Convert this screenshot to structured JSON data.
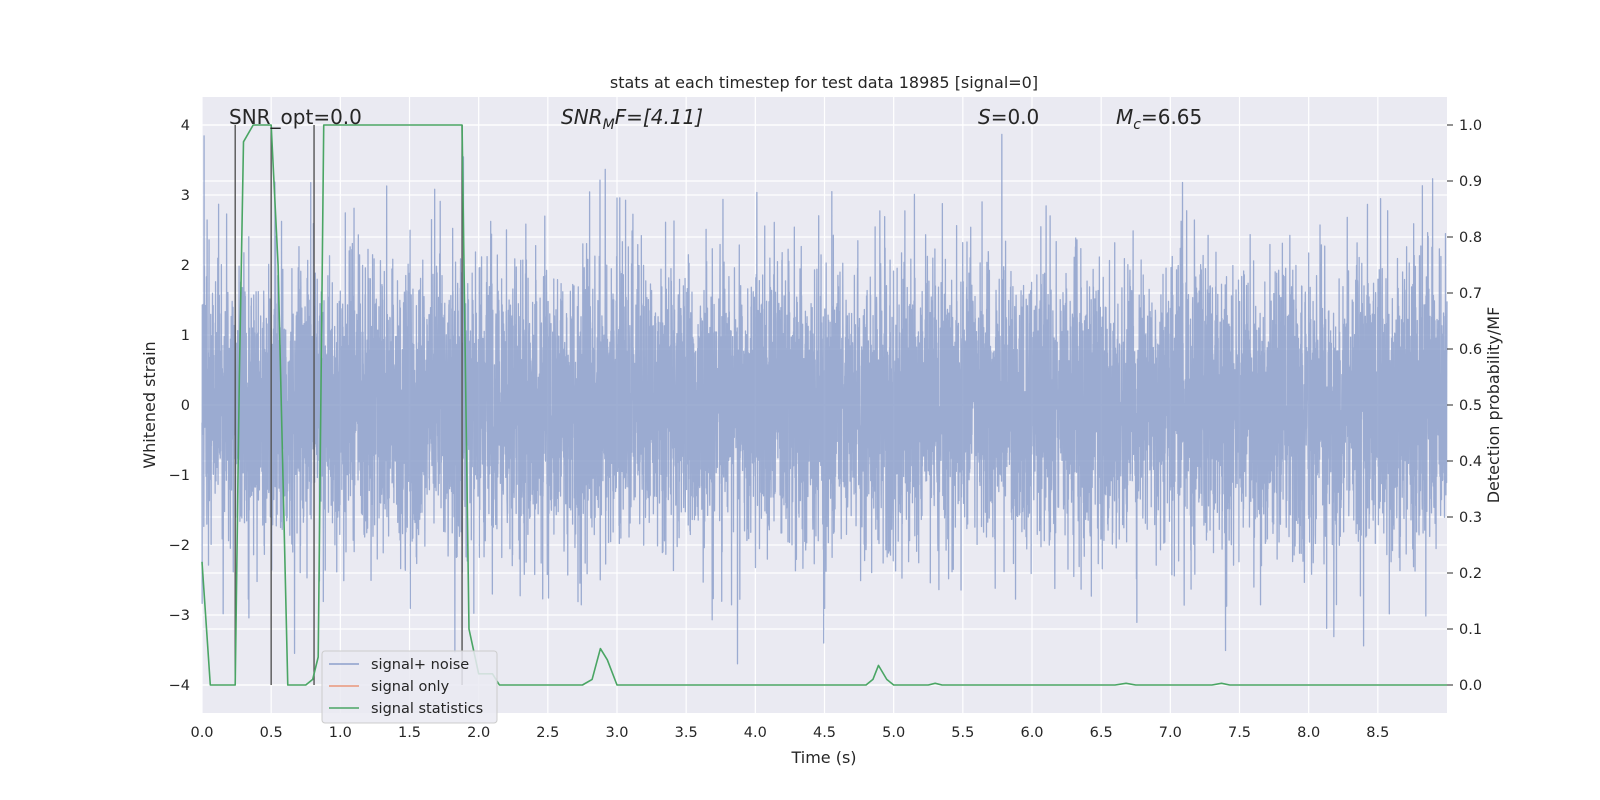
{
  "chart_data": {
    "type": "line",
    "title": "stats at each timestep for test data 18985 [signal=0]",
    "xlabel": "Time (s)",
    "ylabel": "Whitened strain",
    "y2label": "Detection probability/MF",
    "xlim": [
      0.0,
      9.0
    ],
    "ylim": [
      -4.4,
      4.4
    ],
    "y2lim": [
      -0.05,
      1.05
    ],
    "grid": true,
    "xticks": [
      "0.0",
      "0.5",
      "1.0",
      "1.5",
      "2.0",
      "2.5",
      "3.0",
      "3.5",
      "4.0",
      "4.5",
      "5.0",
      "5.5",
      "6.0",
      "6.5",
      "7.0",
      "7.5",
      "8.0",
      "8.5"
    ],
    "yticks": [
      "4",
      "3",
      "2",
      "1",
      "0",
      "−1",
      "−2",
      "−3",
      "−4"
    ],
    "y2ticks": [
      "1.0",
      "0.9",
      "0.8",
      "0.7",
      "0.6",
      "0.5",
      "0.4",
      "0.3",
      "0.2",
      "0.1",
      "0.0"
    ],
    "annotations": {
      "snr_opt": "SNR_opt=0.0",
      "snr_mf_label": "SNR",
      "snr_mf_sub": "M",
      "snr_mf_tail": "F=[4.11]",
      "s_label": "S",
      "s_value": "=0.0",
      "mc_label": "M",
      "mc_sub": "c",
      "mc_value": "=6.65"
    },
    "legend": {
      "location": "lower-left",
      "entries": [
        {
          "label": "signal+ noise",
          "color": "#8da0cb"
        },
        {
          "label": "signal only",
          "color": "#e9967a"
        },
        {
          "label": "signal statistics",
          "color": "#4aa564"
        }
      ]
    },
    "series": [
      {
        "name": "signal+ noise",
        "axis": "left",
        "style": "dense-noise",
        "sample_rate_hz": 1000,
        "sigma": 1.0,
        "color": "#8da0cb"
      },
      {
        "name": "signal only",
        "axis": "left",
        "values": [],
        "color": "#e9967a"
      },
      {
        "name": "signal statistics",
        "axis": "right",
        "color": "#4aa564",
        "points": [
          [
            0.0,
            0.22
          ],
          [
            0.06,
            0.0
          ],
          [
            0.24,
            0.0
          ],
          [
            0.27,
            0.55
          ],
          [
            0.3,
            0.97
          ],
          [
            0.37,
            1.0
          ],
          [
            0.5,
            1.0
          ],
          [
            0.55,
            0.75
          ],
          [
            0.62,
            0.0
          ],
          [
            0.75,
            0.0
          ],
          [
            0.8,
            0.01
          ],
          [
            0.84,
            0.05
          ],
          [
            0.88,
            1.0
          ],
          [
            1.88,
            1.0
          ],
          [
            1.93,
            0.1
          ],
          [
            2.0,
            0.02
          ],
          [
            2.1,
            0.02
          ],
          [
            2.15,
            0.0
          ],
          [
            2.75,
            0.0
          ],
          [
            2.82,
            0.01
          ],
          [
            2.88,
            0.065
          ],
          [
            2.93,
            0.045
          ],
          [
            3.0,
            0.0
          ],
          [
            4.8,
            0.0
          ],
          [
            4.85,
            0.01
          ],
          [
            4.89,
            0.035
          ],
          [
            4.95,
            0.01
          ],
          [
            5.0,
            0.0
          ],
          [
            5.25,
            0.0
          ],
          [
            5.3,
            0.003
          ],
          [
            5.35,
            0.0
          ],
          [
            6.6,
            0.0
          ],
          [
            6.68,
            0.003
          ],
          [
            6.75,
            0.0
          ],
          [
            7.3,
            0.0
          ],
          [
            7.37,
            0.003
          ],
          [
            7.43,
            0.0
          ],
          [
            9.0,
            0.0
          ]
        ]
      }
    ],
    "vertical_markers": {
      "color": "#555555",
      "x": [
        0.24,
        0.5,
        0.81,
        1.88
      ]
    }
  }
}
